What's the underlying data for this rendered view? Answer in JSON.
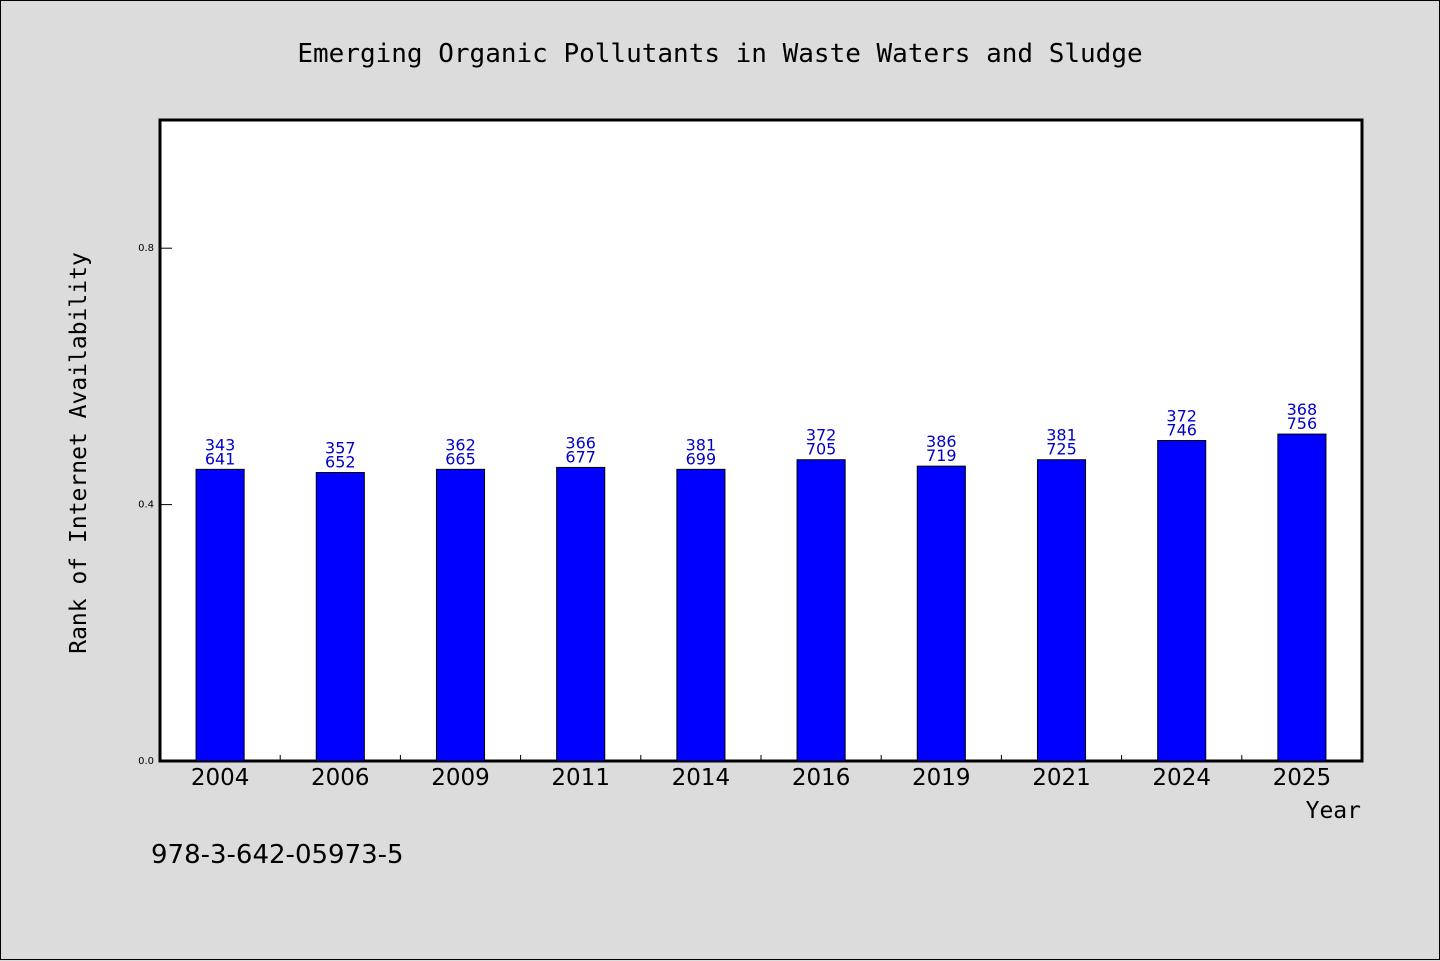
{
  "chart_data": {
    "type": "bar",
    "title": "Emerging Organic Pollutants in Waste Waters and Sludge",
    "xlabel": "Year",
    "ylabel": "Rank of Internet Availability",
    "categories": [
      "2004",
      "2006",
      "2009",
      "2011",
      "2014",
      "2016",
      "2019",
      "2021",
      "2024",
      "2025"
    ],
    "values": [
      0.455,
      0.45,
      0.455,
      0.458,
      0.455,
      0.47,
      0.46,
      0.47,
      0.5,
      0.51
    ],
    "data_labels_top": [
      "343",
      "357",
      "362",
      "366",
      "381",
      "372",
      "386",
      "381",
      "372",
      "368"
    ],
    "data_labels_bottom": [
      "641",
      "652",
      "665",
      "677",
      "699",
      "705",
      "719",
      "725",
      "746",
      "756"
    ],
    "y_ticks": [
      "0.0",
      "0.4",
      "0.8"
    ],
    "ylim": [
      0,
      1.0
    ],
    "bar_color": "#0000ff",
    "label_color": "#0000cc",
    "grid": false,
    "legend": "none"
  },
  "footer_text": "978-3-642-05973-5"
}
